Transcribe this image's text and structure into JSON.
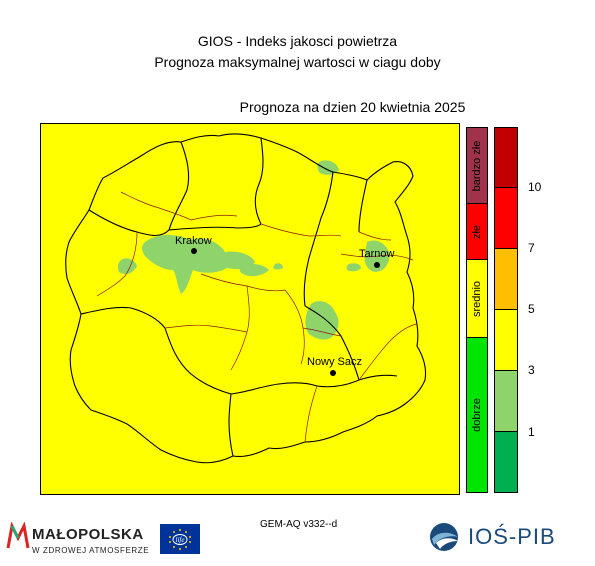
{
  "header": {
    "title": "GIOS - Indeks jakosci powietrza",
    "subtitle": "Prognoza maksymalnej wartosci w ciagu doby",
    "date_label": "Prognoza na dzien  20 kwietnia 2025"
  },
  "map": {
    "background_color": "#ffff00",
    "patch_color": "#8fd46a",
    "border_color_regional": "#000000",
    "border_color_local": "#8b1a1a",
    "cities": [
      {
        "name": "Krakow"
      },
      {
        "name": "Tarnow"
      },
      {
        "name": "Nowy Sacz"
      }
    ]
  },
  "legend": {
    "categories": [
      {
        "label": "bardzo złe",
        "color": "#a0324a"
      },
      {
        "label": "złe",
        "color": "#ff0000"
      },
      {
        "label": "srednio",
        "color": "#ffff00"
      },
      {
        "label": "dobrze",
        "color": "#00e600"
      }
    ],
    "value_bands": [
      "#c00000",
      "#ff0000",
      "#ffbf00",
      "#ffff00",
      "#8fd46a",
      "#00b050"
    ],
    "ticks": [
      "10",
      "7",
      "5",
      "3",
      "1"
    ]
  },
  "footer": {
    "model": "GEM-AQ v332--d",
    "malopolska_name": "MAŁOPOLSKA",
    "malopolska_sub": "W ZDROWEJ ATMOSFERZE",
    "life_text": "life",
    "ios_name": "IOŚ-PIB"
  }
}
